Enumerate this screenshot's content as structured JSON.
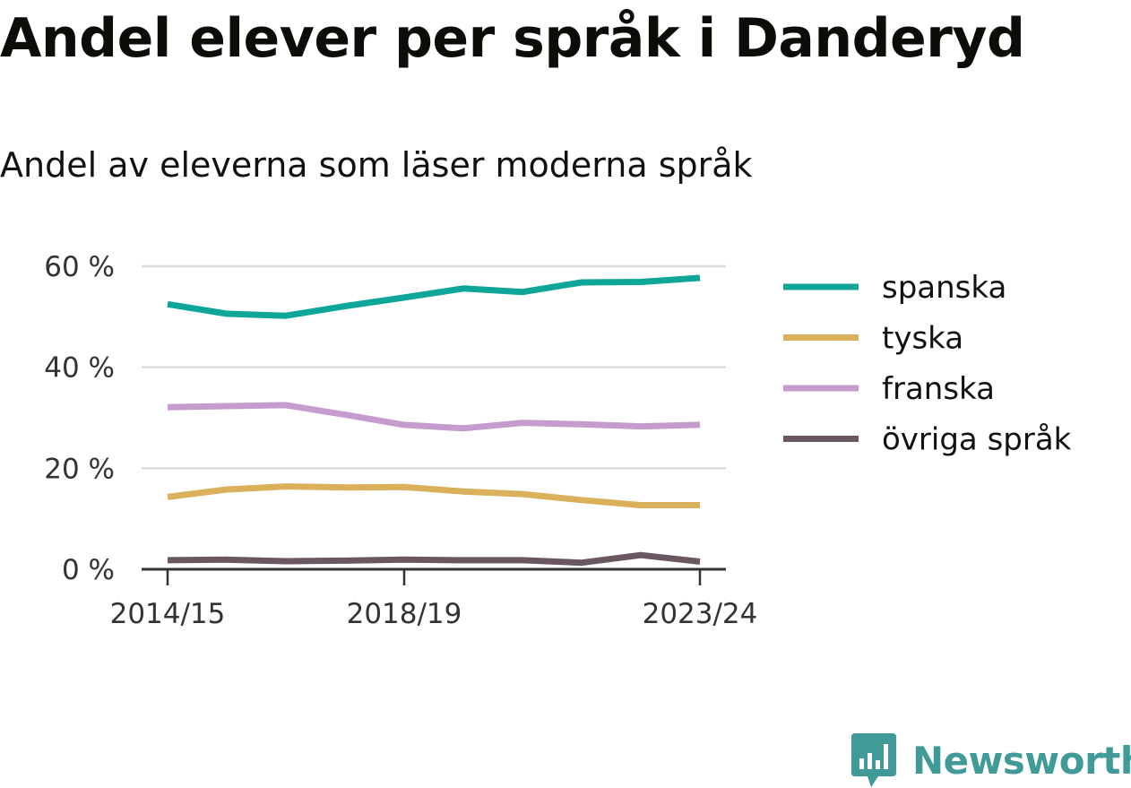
{
  "title": "Andel elever per språk i Danderyd",
  "subtitle": "Andel av eleverna som läser moderna språk",
  "brand": {
    "name": "Newsworthy",
    "color": "#3f9a98",
    "icon": "newsworthy-logo-icon"
  },
  "chart_data": {
    "type": "line",
    "x": [
      "2014/15",
      "2015/16",
      "2016/17",
      "2017/18",
      "2018/19",
      "2019/20",
      "2020/21",
      "2021/22",
      "2022/23",
      "2023/24"
    ],
    "x_tick_labels": [
      "2014/15",
      "2018/19",
      "2023/24"
    ],
    "y_tick_labels": [
      "0 %",
      "20 %",
      "40 %",
      "60 %"
    ],
    "y_ticks": [
      0,
      20,
      40,
      60
    ],
    "ylim": [
      0,
      60
    ],
    "grid": true,
    "legend_position": "right",
    "series": [
      {
        "name": "spanska",
        "color": "#0fa69a",
        "values": [
          52.5,
          50.6,
          50.2,
          52.1,
          53.8,
          55.6,
          54.9,
          56.8,
          56.9,
          57.7
        ]
      },
      {
        "name": "tyska",
        "color": "#dbb05b",
        "values": [
          14.3,
          15.8,
          16.4,
          16.2,
          16.3,
          15.4,
          14.9,
          13.7,
          12.7,
          12.7
        ]
      },
      {
        "name": "franska",
        "color": "#c59ccd",
        "values": [
          32.1,
          32.3,
          32.5,
          30.6,
          28.6,
          27.9,
          29.0,
          28.7,
          28.3,
          28.6
        ]
      },
      {
        "name": "övriga språk",
        "color": "#6a5762",
        "values": [
          1.8,
          1.9,
          1.6,
          1.7,
          1.9,
          1.8,
          1.8,
          1.3,
          2.8,
          1.5
        ]
      }
    ]
  }
}
